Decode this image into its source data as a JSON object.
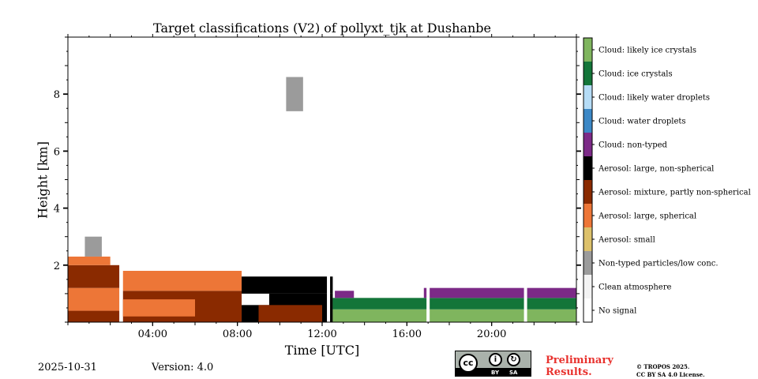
{
  "chart_data": {
    "type": "heatmap",
    "title": "Target classifications (V2) of pollyxt_tjk at Dushanbe",
    "xlabel": "Time [UTC]",
    "ylabel": "Height [km]",
    "xlim_hours": [
      0,
      24
    ],
    "ylim_km": [
      0,
      10
    ],
    "x_ticks": [
      {
        "value": 4,
        "label": "04:00"
      },
      {
        "value": 8,
        "label": "08:00"
      },
      {
        "value": 12,
        "label": "12:00"
      },
      {
        "value": 16,
        "label": "16:00"
      },
      {
        "value": 20,
        "label": "20:00"
      }
    ],
    "y_ticks": [
      {
        "value": 2,
        "label": "2"
      },
      {
        "value": 4,
        "label": "4"
      },
      {
        "value": 6,
        "label": "6"
      },
      {
        "value": 8,
        "label": "8"
      }
    ],
    "classes": [
      {
        "label": "Cloud: likely ice crystals",
        "color": "#7fb55e"
      },
      {
        "label": "Cloud: ice crystals",
        "color": "#137539"
      },
      {
        "label": "Cloud: likely water droplets",
        "color": "#b5dcf6"
      },
      {
        "label": "Cloud: water droplets",
        "color": "#3c88c6"
      },
      {
        "label": "Cloud: non-typed",
        "color": "#7c2a87"
      },
      {
        "label": "Aerosol: large, non-spherical",
        "color": "#000000"
      },
      {
        "label": "Aerosol: mixture, partly non-spherical",
        "color": "#8a2a00"
      },
      {
        "label": "Aerosol: large, spherical",
        "color": "#ed7637"
      },
      {
        "label": "Aerosol: small",
        "color": "#ddc16b"
      },
      {
        "label": "Non-typed particles/low conc.",
        "color": "#9b9b9b"
      },
      {
        "label": "Clean atmosphere",
        "color": "#f3f3f3"
      },
      {
        "label": "No signal",
        "color": "#ffffff"
      }
    ],
    "regions": [
      {
        "t0": 0.0,
        "t1": 2.5,
        "h0": 0.0,
        "h1": 0.4,
        "class": "Aerosol: mixture, partly non-spherical"
      },
      {
        "t0": 0.0,
        "t1": 2.5,
        "h0": 0.4,
        "h1": 1.2,
        "class": "Aerosol: large, spherical"
      },
      {
        "t0": 0.0,
        "t1": 2.5,
        "h0": 1.2,
        "h1": 2.0,
        "class": "Aerosol: mixture, partly non-spherical"
      },
      {
        "t0": 0.0,
        "t1": 2.0,
        "h0": 2.0,
        "h1": 2.3,
        "class": "Aerosol: large, spherical"
      },
      {
        "t0": 0.8,
        "t1": 1.6,
        "h0": 2.3,
        "h1": 3.0,
        "class": "Non-typed particles/low conc."
      },
      {
        "t0": 2.6,
        "t1": 8.2,
        "h0": 0.0,
        "h1": 1.1,
        "class": "Aerosol: mixture, partly non-spherical"
      },
      {
        "t0": 2.6,
        "t1": 6.0,
        "h0": 0.2,
        "h1": 0.8,
        "class": "Aerosol: large, spherical"
      },
      {
        "t0": 2.6,
        "t1": 8.2,
        "h0": 1.1,
        "h1": 1.8,
        "class": "Aerosol: large, spherical"
      },
      {
        "t0": 8.2,
        "t1": 9.5,
        "h0": 0.0,
        "h1": 0.6,
        "class": "Aerosol: large, non-spherical"
      },
      {
        "t0": 9.5,
        "t1": 12.5,
        "h0": 0.0,
        "h1": 1.0,
        "class": "Aerosol: large, non-spherical"
      },
      {
        "t0": 9.0,
        "t1": 12.0,
        "h0": 0.0,
        "h1": 0.6,
        "class": "Aerosol: mixture, partly non-spherical"
      },
      {
        "t0": 8.2,
        "t1": 12.5,
        "h0": 1.0,
        "h1": 1.6,
        "class": "Aerosol: large, non-spherical"
      },
      {
        "t0": 12.5,
        "t1": 24.0,
        "h0": 0.0,
        "h1": 0.45,
        "class": "Cloud: likely ice crystals"
      },
      {
        "t0": 12.5,
        "t1": 24.0,
        "h0": 0.45,
        "h1": 0.85,
        "class": "Cloud: ice crystals"
      },
      {
        "t0": 12.6,
        "t1": 13.5,
        "h0": 0.85,
        "h1": 1.1,
        "class": "Cloud: non-typed"
      },
      {
        "t0": 16.8,
        "t1": 24.0,
        "h0": 0.85,
        "h1": 1.2,
        "class": "Cloud: non-typed"
      },
      {
        "t0": 10.3,
        "t1": 11.1,
        "h0": 7.4,
        "h1": 8.6,
        "class": "Non-typed particles/low conc."
      }
    ],
    "gaps_hours": [
      2.5,
      12.3,
      17.0,
      21.6
    ]
  },
  "footer": {
    "date": "2025-10-31",
    "version": "Version: 4.0",
    "preliminary_line1": "Preliminary",
    "preliminary_line2": "Results.",
    "copyright_line1": "© TROPOS 2025.",
    "copyright_line2": "CC BY SA 4.0 License."
  },
  "license_badge": {
    "cc": "cc",
    "by": "BY",
    "sa": "SA"
  }
}
